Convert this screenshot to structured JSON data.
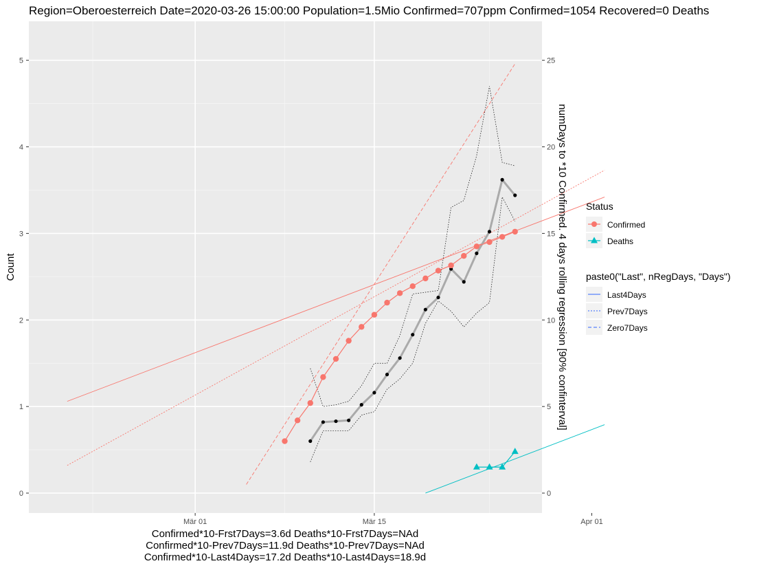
{
  "chart_data": {
    "type": "line",
    "title": "Region=Oberoesterreich Date=2020-03-26 15:00:00  Population=1.5Mio Confirmed=707ppm  Confirmed=1054  Recovered=0 Deaths",
    "ylabel": "Count",
    "y2label": "numDays to *10 Confirmed. 4 days rolling regression [90% confinterval]",
    "xlabel_lines": [
      "Confirmed*10-Frst7Days=3.6d  Deaths*10-Frst7Days=NAd",
      "Confirmed*10-Prev7Days=11.9d  Deaths*10-Prev7Days=NAd",
      "Confirmed*10-Last4Days=17.2d  Deaths*10-Last4Days=18.9d"
    ],
    "x_ticks": [
      "Mär 01",
      "Mär 15",
      "Apr 01"
    ],
    "ylim": [
      -0.23,
      5.45
    ],
    "y_ticks": [
      "0",
      "1",
      "2",
      "3",
      "4",
      "5"
    ],
    "y2lim": [
      -1.15,
      27.25
    ],
    "y2_ticks": [
      "0",
      "5",
      "10",
      "15",
      "20",
      "25"
    ],
    "colors": {
      "confirmed": "#F8766D",
      "deaths": "#00BFC4",
      "rolling": "#aaaaaa",
      "panel": "#EBEBEB",
      "reg_blue": "#3366FF"
    },
    "legend": {
      "status_title": "Status",
      "status_items": [
        "Confirmed",
        "Deaths"
      ],
      "reg_title": "paste0(\"Last\", nRegDays, \"Days\")",
      "reg_items": [
        "Last4Days",
        "Prev7Days",
        "Zero7Days"
      ],
      "placement": "right"
    },
    "series": [
      {
        "name": "Confirmed",
        "x": [
          "2020-03-08",
          "2020-03-09",
          "2020-03-10",
          "2020-03-11",
          "2020-03-12",
          "2020-03-13",
          "2020-03-14",
          "2020-03-15",
          "2020-03-16",
          "2020-03-17",
          "2020-03-18",
          "2020-03-19",
          "2020-03-20",
          "2020-03-21",
          "2020-03-22",
          "2020-03-23",
          "2020-03-24",
          "2020-03-25",
          "2020-03-26"
        ],
        "y": [
          0.6,
          0.84,
          1.04,
          1.34,
          1.55,
          1.76,
          1.92,
          2.06,
          2.2,
          2.31,
          2.39,
          2.48,
          2.57,
          2.63,
          2.74,
          2.85,
          2.9,
          2.96,
          3.02
        ]
      },
      {
        "name": "Deaths",
        "x": [
          "2020-03-23",
          "2020-03-24",
          "2020-03-25",
          "2020-03-26"
        ],
        "y": [
          0.3,
          0.3,
          0.3,
          0.48
        ]
      },
      {
        "x": [
          "2020-03-10",
          "2020-03-11",
          "2020-03-12",
          "2020-03-13",
          "2020-03-14",
          "2020-03-15",
          "2020-03-16",
          "2020-03-17",
          "2020-03-18",
          "2020-03-19",
          "2020-03-20",
          "2020-03-21",
          "2020-03-22",
          "2020-03-23",
          "2020-03-24",
          "2020-03-25",
          "2020-03-26"
        ],
        "y2": [
          3.0,
          4.1,
          4.15,
          4.2,
          5.1,
          5.8,
          6.85,
          7.8,
          9.15,
          10.6,
          11.3,
          12.95,
          12.2,
          13.85,
          15.1,
          18.1,
          17.2
        ],
        "y2_upper": [
          7.2,
          5.0,
          5.1,
          5.3,
          6.2,
          7.5,
          7.5,
          9.1,
          11.5,
          11.6,
          11.7,
          16.5,
          16.9,
          19.5,
          23.5,
          19.1,
          18.9
        ],
        "y2_lower": [
          1.8,
          3.6,
          3.6,
          3.6,
          4.5,
          4.7,
          6.0,
          6.6,
          7.5,
          9.8,
          11.1,
          10.5,
          9.6,
          10.4,
          11.0,
          17.1,
          15.7
        ]
      }
    ],
    "regression_lines": [
      {
        "label": "Last4Days",
        "color": "#F8766D",
        "x": [
          "2020-02-20",
          "2020-04-02"
        ],
        "y": [
          1.06,
          3.42
        ]
      },
      {
        "label": "Prev7Days",
        "color": "#F8766D",
        "x": [
          "2020-02-20",
          "2020-04-02"
        ],
        "y": [
          0.32,
          3.73
        ]
      },
      {
        "label": "Zero7Days",
        "color": "#F8766D",
        "x": [
          "2020-03-05",
          "2020-03-26"
        ],
        "y": [
          0.1,
          4.96
        ]
      },
      {
        "label": "Last4Days",
        "color": "#00BFC4",
        "x": [
          "2020-03-19",
          "2020-04-02"
        ],
        "y": [
          0.0,
          0.79
        ]
      }
    ]
  }
}
